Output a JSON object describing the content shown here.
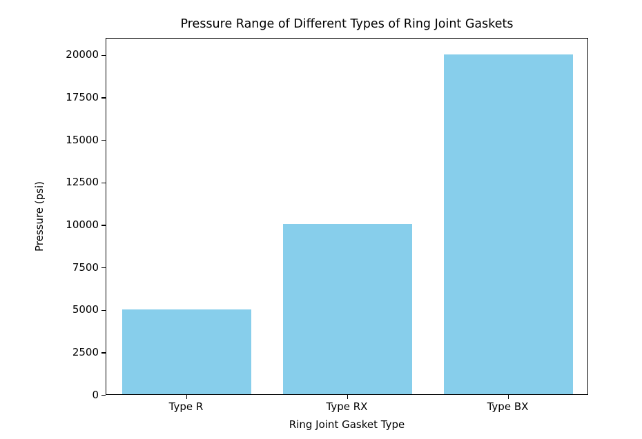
{
  "chart_data": {
    "type": "bar",
    "title": "Pressure Range of Different Types of Ring Joint Gaskets",
    "xlabel": "Ring Joint Gasket Type",
    "ylabel": "Pressure (psi)",
    "categories": [
      "Type R",
      "Type RX",
      "Type BX"
    ],
    "values": [
      5000,
      10000,
      20000
    ],
    "yticks": [
      0,
      2500,
      5000,
      7500,
      10000,
      12500,
      15000,
      17500,
      20000
    ],
    "ylim": [
      0,
      21000
    ],
    "bar_color": "#87CEEB",
    "background_color": "#FFFFFF",
    "axis_color": "#000000",
    "grid": "off",
    "legend": "none",
    "bar_width_fraction": 0.8
  }
}
